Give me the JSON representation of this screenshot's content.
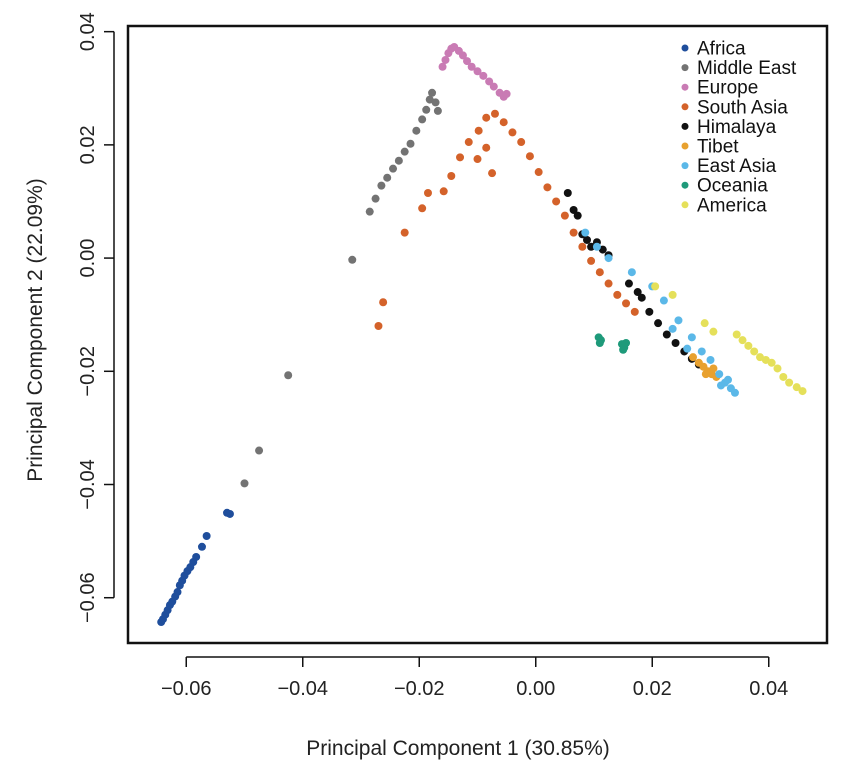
{
  "chart_data": {
    "type": "scatter",
    "title": "",
    "xlabel": "Principal Component 1 (30.85%)",
    "ylabel": "Principal Component 2 (22.09%)",
    "xlim": [
      -0.07,
      0.05
    ],
    "ylim": [
      -0.068,
      0.041
    ],
    "x_ticks": [
      -0.06,
      -0.04,
      -0.02,
      0.0,
      0.02,
      0.04
    ],
    "x_tick_labels": [
      "−0.06",
      "−0.04",
      "−0.02",
      "0.00",
      "0.02",
      "0.04"
    ],
    "y_ticks": [
      -0.06,
      -0.04,
      -0.02,
      0.0,
      0.02,
      0.04
    ],
    "y_tick_labels": [
      "−0.06",
      "−0.04",
      "−0.02",
      "0.00",
      "0.02",
      "0.04"
    ],
    "grid": false,
    "legend_position": "top-right",
    "series": [
      {
        "name": "Africa",
        "color": "#1f4e9c",
        "points": [
          [
            -0.0643,
            -0.0643
          ],
          [
            -0.064,
            -0.0638
          ],
          [
            -0.0636,
            -0.063
          ],
          [
            -0.0632,
            -0.0622
          ],
          [
            -0.0628,
            -0.0613
          ],
          [
            -0.0624,
            -0.0607
          ],
          [
            -0.0619,
            -0.0598
          ],
          [
            -0.0615,
            -0.059
          ],
          [
            -0.0611,
            -0.0578
          ],
          [
            -0.0607,
            -0.057
          ],
          [
            -0.0603,
            -0.0561
          ],
          [
            -0.0598,
            -0.0553
          ],
          [
            -0.0593,
            -0.0546
          ],
          [
            -0.0588,
            -0.0537
          ],
          [
            -0.0583,
            -0.0528
          ],
          [
            -0.0573,
            -0.051
          ],
          [
            -0.0565,
            -0.0491
          ],
          [
            -0.053,
            -0.045
          ],
          [
            -0.0525,
            -0.0452
          ]
        ]
      },
      {
        "name": "Middle East",
        "color": "#737373",
        "points": [
          [
            -0.0425,
            -0.0207
          ],
          [
            -0.0475,
            -0.034
          ],
          [
            -0.05,
            -0.0398
          ],
          [
            -0.0315,
            -0.0003
          ],
          [
            -0.0285,
            0.0082
          ],
          [
            -0.0275,
            0.0105
          ],
          [
            -0.0265,
            0.0128
          ],
          [
            -0.0255,
            0.0142
          ],
          [
            -0.0245,
            0.0158
          ],
          [
            -0.0235,
            0.0172
          ],
          [
            -0.0225,
            0.0188
          ],
          [
            -0.0215,
            0.0202
          ],
          [
            -0.0205,
            0.0225
          ],
          [
            -0.0195,
            0.0245
          ],
          [
            -0.0188,
            0.0262
          ],
          [
            -0.0182,
            0.028
          ],
          [
            -0.0178,
            0.0292
          ],
          [
            -0.0172,
            0.0275
          ],
          [
            -0.0168,
            0.026
          ]
        ]
      },
      {
        "name": "Europe",
        "color": "#c97bb4",
        "points": [
          [
            -0.016,
            0.0338
          ],
          [
            -0.0155,
            0.035
          ],
          [
            -0.015,
            0.0362
          ],
          [
            -0.0145,
            0.037
          ],
          [
            -0.014,
            0.0373
          ],
          [
            -0.0132,
            0.0366
          ],
          [
            -0.0125,
            0.0358
          ],
          [
            -0.0118,
            0.0348
          ],
          [
            -0.011,
            0.0338
          ],
          [
            -0.01,
            0.033
          ],
          [
            -0.009,
            0.0322
          ],
          [
            -0.008,
            0.0312
          ],
          [
            -0.0072,
            0.0303
          ],
          [
            -0.0062,
            0.0292
          ],
          [
            -0.0055,
            0.0285
          ],
          [
            -0.005,
            0.029
          ]
        ]
      },
      {
        "name": "South Asia",
        "color": "#d4622a",
        "points": [
          [
            -0.027,
            -0.012
          ],
          [
            -0.0262,
            -0.0078
          ],
          [
            -0.0225,
            0.0045
          ],
          [
            -0.0195,
            0.0088
          ],
          [
            -0.0185,
            0.0115
          ],
          [
            -0.0158,
            0.0118
          ],
          [
            -0.0145,
            0.0145
          ],
          [
            -0.013,
            0.0178
          ],
          [
            -0.0115,
            0.0205
          ],
          [
            -0.0098,
            0.0225
          ],
          [
            -0.0085,
            0.0248
          ],
          [
            -0.007,
            0.0255
          ],
          [
            -0.0055,
            0.024
          ],
          [
            -0.004,
            0.0222
          ],
          [
            -0.0025,
            0.0205
          ],
          [
            -0.001,
            0.018
          ],
          [
            0.0005,
            0.0152
          ],
          [
            0.002,
            0.0125
          ],
          [
            0.0035,
            0.01
          ],
          [
            0.005,
            0.0075
          ],
          [
            0.0065,
            0.0045
          ],
          [
            0.008,
            0.002
          ],
          [
            0.0095,
            -0.0005
          ],
          [
            0.011,
            -0.0025
          ],
          [
            0.0125,
            -0.0045
          ],
          [
            0.014,
            -0.0065
          ],
          [
            0.0155,
            -0.008
          ],
          [
            0.017,
            -0.0095
          ],
          [
            -0.0085,
            0.0195
          ],
          [
            -0.01,
            0.0175
          ],
          [
            -0.0075,
            0.015
          ]
        ]
      },
      {
        "name": "Himalaya",
        "color": "#111111",
        "points": [
          [
            0.0055,
            0.0115
          ],
          [
            0.0065,
            0.0085
          ],
          [
            0.0072,
            0.0075
          ],
          [
            0.008,
            0.0042
          ],
          [
            0.0088,
            0.0032
          ],
          [
            0.0095,
            0.002
          ],
          [
            0.0105,
            0.0028
          ],
          [
            0.0115,
            0.0015
          ],
          [
            0.0125,
            0.0005
          ],
          [
            0.016,
            -0.0045
          ],
          [
            0.0175,
            -0.006
          ],
          [
            0.0182,
            -0.007
          ],
          [
            0.0195,
            -0.0095
          ],
          [
            0.021,
            -0.0115
          ],
          [
            0.0225,
            -0.0135
          ],
          [
            0.024,
            -0.015
          ],
          [
            0.0255,
            -0.0165
          ],
          [
            0.0268,
            -0.0178
          ],
          [
            0.028,
            -0.0188
          ]
        ]
      },
      {
        "name": "Tibet",
        "color": "#e8a12f",
        "points": [
          [
            0.027,
            -0.0175
          ],
          [
            0.028,
            -0.0185
          ],
          [
            0.0288,
            -0.0192
          ],
          [
            0.0295,
            -0.02
          ],
          [
            0.0302,
            -0.0205
          ],
          [
            0.031,
            -0.021
          ],
          [
            0.0305,
            -0.0195
          ],
          [
            0.0292,
            -0.0205
          ]
        ]
      },
      {
        "name": "East Asia",
        "color": "#5bb8e8",
        "points": [
          [
            0.0085,
            0.0045
          ],
          [
            0.0105,
            0.002
          ],
          [
            0.0125,
            0.0
          ],
          [
            0.0165,
            -0.0025
          ],
          [
            0.02,
            -0.005
          ],
          [
            0.022,
            -0.0075
          ],
          [
            0.0245,
            -0.011
          ],
          [
            0.0268,
            -0.014
          ],
          [
            0.0285,
            -0.0165
          ],
          [
            0.03,
            -0.018
          ],
          [
            0.0315,
            -0.0205
          ],
          [
            0.0325,
            -0.022
          ],
          [
            0.0335,
            -0.023
          ],
          [
            0.0342,
            -0.0238
          ],
          [
            0.0318,
            -0.0225
          ],
          [
            0.033,
            -0.0215
          ],
          [
            0.026,
            -0.016
          ],
          [
            0.0235,
            -0.0125
          ]
        ]
      },
      {
        "name": "Oceania",
        "color": "#1e9a7a",
        "points": [
          [
            0.0108,
            -0.014
          ],
          [
            0.0112,
            -0.0145
          ],
          [
            0.011,
            -0.015
          ],
          [
            0.0148,
            -0.0152
          ],
          [
            0.0152,
            -0.0158
          ],
          [
            0.0155,
            -0.015
          ],
          [
            0.015,
            -0.0162
          ]
        ]
      },
      {
        "name": "America",
        "color": "#e5e05a",
        "points": [
          [
            0.0205,
            -0.005
          ],
          [
            0.0235,
            -0.0065
          ],
          [
            0.029,
            -0.0115
          ],
          [
            0.0305,
            -0.013
          ],
          [
            0.0345,
            -0.0135
          ],
          [
            0.0355,
            -0.0145
          ],
          [
            0.0365,
            -0.0155
          ],
          [
            0.0375,
            -0.0165
          ],
          [
            0.0385,
            -0.0175
          ],
          [
            0.0395,
            -0.018
          ],
          [
            0.0405,
            -0.0185
          ],
          [
            0.0415,
            -0.0195
          ],
          [
            0.0425,
            -0.021
          ],
          [
            0.0435,
            -0.022
          ],
          [
            0.0448,
            -0.0228
          ],
          [
            0.0458,
            -0.0235
          ]
        ]
      }
    ]
  }
}
